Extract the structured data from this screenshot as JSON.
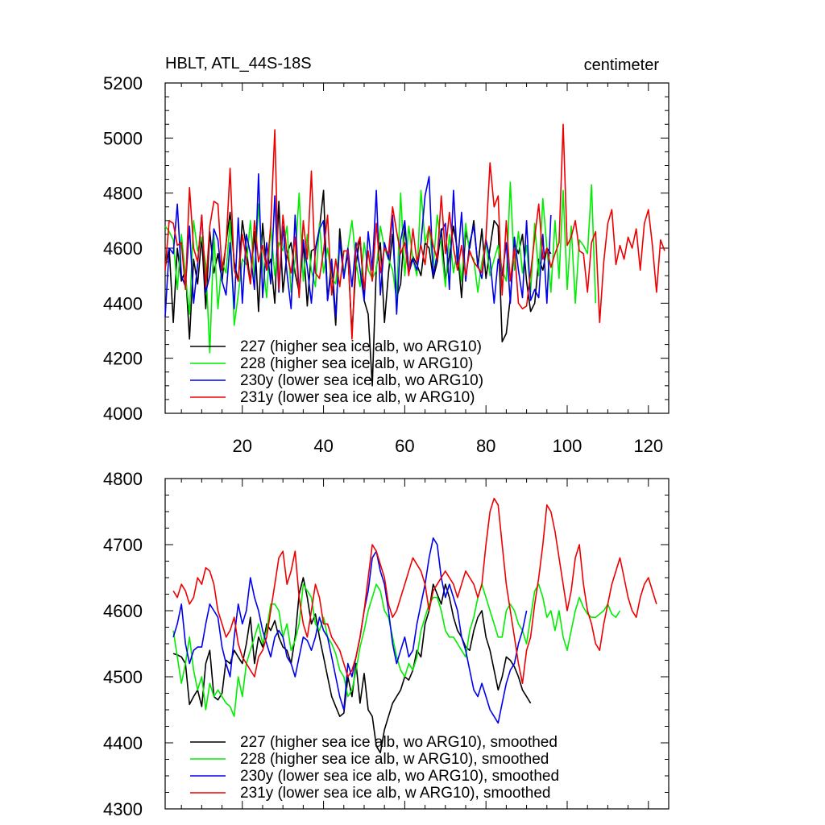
{
  "chart_data": [
    {
      "type": "line",
      "title": "HBLT, ATL_44S-18S",
      "units": "centimeter",
      "xlim": [
        1,
        125
      ],
      "ylim": [
        4000,
        5200
      ],
      "xticks": [
        20,
        40,
        60,
        80,
        100,
        120
      ],
      "yticks": [
        4000,
        4200,
        4400,
        4600,
        4800,
        5000,
        5200
      ],
      "legend_position": "bottom-left",
      "series": [
        {
          "name": "227 (higher sea ice alb, wo ARG10)",
          "color": "#000000",
          "x_start": 1,
          "values": [
            4530,
            4600,
            4330,
            4600,
            4480,
            4520,
            4270,
            4560,
            4470,
            4640,
            4380,
            4660,
            4510,
            4580,
            4480,
            4620,
            4730,
            4550,
            4480,
            4700,
            4600,
            4470,
            4660,
            4370,
            4690,
            4520,
            4560,
            4400,
            4770,
            4440,
            4580,
            4620,
            4510,
            4440,
            4620,
            4390,
            4590,
            4600,
            4670,
            4810,
            4410,
            4530,
            4320,
            4670,
            4500,
            4580,
            4290,
            4540,
            4640,
            4410,
            4360,
            4100,
            4530,
            4620,
            4330,
            4510,
            4650,
            4420,
            4470,
            4680,
            4520,
            4570,
            4540,
            4500,
            4620,
            4600,
            4490,
            4550,
            4670,
            4480,
            4570,
            4680,
            4590,
            4420,
            4660,
            4600,
            4700,
            4530,
            4670,
            4490,
            4600,
            4700,
            4680,
            4260,
            4290,
            4420,
            4620,
            4580,
            4650,
            4480,
            4370,
            4400,
            4560,
            4520,
            4600,
            4580
          ]
        },
        {
          "name": "228 (higher sea ice alb, w ARG10)",
          "color": "#00ee00",
          "x_start": 1,
          "values": [
            4680,
            4660,
            4630,
            4450,
            4650,
            4500,
            4360,
            4700,
            4590,
            4640,
            4540,
            4220,
            4650,
            4380,
            4550,
            4510,
            4700,
            4320,
            4430,
            4560,
            4540,
            4700,
            4490,
            4760,
            4550,
            4420,
            4680,
            4500,
            4620,
            4590,
            4680,
            4440,
            4560,
            4800,
            4480,
            4650,
            4520,
            4460,
            4690,
            4510,
            4600,
            4490,
            4470,
            4620,
            4500,
            4600,
            4700,
            4550,
            4460,
            4620,
            4520,
            4490,
            4520,
            4680,
            4600,
            4560,
            4520,
            4410,
            4800,
            4500,
            4680,
            4560,
            4500,
            4810,
            4620,
            4680,
            4530,
            4720,
            4610,
            4460,
            4650,
            4510,
            4600,
            4480,
            4690,
            4580,
            4560,
            4440,
            4550,
            4620,
            4500,
            4560,
            4610,
            4520,
            4480,
            4840,
            4520,
            4660,
            4510,
            4610,
            4440,
            4690,
            4500,
            4780,
            4600,
            4440,
            4700,
            4490,
            4810,
            4450,
            4680,
            4400,
            4630,
            4610,
            4580,
            4830,
            4400
          ]
        },
        {
          "name": "230y (lower sea ice alb, wo ARG10)",
          "color": "#0000ee",
          "x_start": 1,
          "values": [
            4350,
            4600,
            4580,
            4760,
            4500,
            4460,
            4680,
            4400,
            4540,
            4720,
            4440,
            4500,
            4670,
            4630,
            4480,
            4430,
            4620,
            4380,
            4710,
            4400,
            4650,
            4580,
            4450,
            4870,
            4420,
            4620,
            4470,
            4790,
            4440,
            4680,
            4510,
            4380,
            4720,
            4430,
            4630,
            4530,
            4400,
            4590,
            4670,
            4700,
            4410,
            4560,
            4350,
            4630,
            4490,
            4600,
            4460,
            4620,
            4520,
            4410,
            4660,
            4520,
            4810,
            4430,
            4620,
            4560,
            4720,
            4360,
            4630,
            4700,
            4510,
            4560,
            4520,
            4620,
            4790,
            4860,
            4500,
            4580,
            4660,
            4690,
            4450,
            4810,
            4540,
            4730,
            4480,
            4620,
            4680,
            4540,
            4490,
            4630,
            4560,
            4400,
            4560,
            4500,
            4620,
            4400,
            4640,
            4520,
            4420,
            4700,
            4410,
            4450,
            4420,
            4650,
            4400,
            4720
          ]
        },
        {
          "name": "231y (lower sea ice alb, w ARG10)",
          "color": "#ee0000",
          "x_start": 1,
          "values": [
            4520,
            4700,
            4690,
            4610,
            4620,
            4450,
            4820,
            4600,
            4550,
            4720,
            4460,
            4680,
            4770,
            4760,
            4520,
            4610,
            4890,
            4520,
            4480,
            4650,
            4560,
            4470,
            4700,
            4550,
            4610,
            4520,
            4680,
            5030,
            4450,
            4720,
            4580,
            4510,
            4640,
            4420,
            4700,
            4560,
            4880,
            4510,
            4490,
            4590,
            4720,
            4430,
            4560,
            4460,
            4590,
            4590,
            4270,
            4600,
            4640,
            4450,
            4590,
            4480,
            4690,
            4510,
            4600,
            4580,
            4750,
            4660,
            4580,
            4620,
            4500,
            4670,
            4550,
            4610,
            4540,
            4680,
            4610,
            4560,
            4790,
            4580,
            4730,
            4600,
            4520,
            4610,
            4500,
            4590,
            4550,
            4530,
            4510,
            4640,
            4910,
            4750,
            4790,
            4430,
            4700,
            4480,
            4600,
            4400,
            4380,
            4390,
            4510,
            4640,
            4760,
            4560,
            4600,
            4530,
            4580,
            4620,
            5050,
            4610,
            4640,
            4700,
            4590,
            4580,
            4440,
            4620,
            4660,
            4330,
            4550,
            4690,
            4740,
            4540,
            4610,
            4560,
            4640,
            4600,
            4670,
            4520,
            4690,
            4740,
            4610,
            4440,
            4630,
            4590
          ]
        }
      ]
    },
    {
      "type": "line",
      "title": "",
      "xlim": [
        1,
        125
      ],
      "ylim": [
        4300,
        4800
      ],
      "yticks": [
        4300,
        4400,
        4500,
        4600,
        4700,
        4800
      ],
      "legend_position": "bottom-left",
      "series": [
        {
          "name": "227 (higher sea ice alb, wo ARG10), smoothed",
          "color": "#000000",
          "x_start": 3,
          "values": [
            4535,
            4533,
            4530,
            4520,
            4458,
            4470,
            4480,
            4455,
            4520,
            4540,
            4470,
            4465,
            4475,
            4525,
            4520,
            4540,
            4530,
            4520,
            4550,
            4590,
            4520,
            4560,
            4545,
            4580,
            4570,
            4585,
            4560,
            4545,
            4540,
            4520,
            4560,
            4625,
            4650,
            4620,
            4580,
            4595,
            4560,
            4530,
            4500,
            4470,
            4455,
            4440,
            4445,
            4500,
            4470,
            4520,
            4460,
            4505,
            4450,
            4440,
            4395,
            4385,
            4420,
            4440,
            4460,
            4470,
            4480,
            4500,
            4495,
            4510,
            4540,
            4530,
            4580,
            4600,
            4640,
            4625,
            4610,
            4640,
            4620,
            4590,
            4570,
            4560,
            4545,
            4540,
            4570,
            4590,
            4600,
            4560,
            4540,
            4510,
            4480,
            4500,
            4530,
            4525,
            4515,
            4500,
            4480,
            4470,
            4460
          ]
        },
        {
          "name": "228 (higher sea ice alb, w ARG10), smoothed",
          "color": "#00ee00",
          "x_start": 3,
          "values": [
            4570,
            4530,
            4490,
            4520,
            4560,
            4510,
            4480,
            4500,
            4450,
            4490,
            4470,
            4480,
            4470,
            4460,
            4455,
            4440,
            4500,
            4470,
            4520,
            4540,
            4560,
            4580,
            4550,
            4570,
            4610,
            4610,
            4600,
            4560,
            4580,
            4540,
            4555,
            4580,
            4640,
            4630,
            4620,
            4580,
            4570,
            4590,
            4560,
            4550,
            4535,
            4510,
            4500,
            4470,
            4480,
            4510,
            4545,
            4570,
            4600,
            4620,
            4640,
            4630,
            4600,
            4590,
            4560,
            4530,
            4510,
            4500,
            4520,
            4510,
            4530,
            4570,
            4590,
            4610,
            4620,
            4620,
            4600,
            4570,
            4560,
            4560,
            4550,
            4540,
            4530,
            4570,
            4590,
            4620,
            4640,
            4620,
            4600,
            4580,
            4560,
            4560,
            4600,
            4610,
            4600,
            4580,
            4570,
            4550,
            4590,
            4630,
            4640,
            4620,
            4590,
            4600,
            4570,
            4600,
            4560,
            4540,
            4570,
            4600,
            4620,
            4605,
            4595,
            4590,
            4590,
            4595,
            4600,
            4610,
            4595,
            4590,
            4600
          ]
        },
        {
          "name": "230y (lower sea ice alb, wo ARG10), smoothed",
          "color": "#0000ee",
          "x_start": 3,
          "values": [
            4560,
            4580,
            4610,
            4550,
            4520,
            4540,
            4545,
            4545,
            4580,
            4610,
            4600,
            4590,
            4545,
            4520,
            4500,
            4560,
            4610,
            4580,
            4600,
            4650,
            4620,
            4600,
            4570,
            4550,
            4530,
            4560,
            4570,
            4560,
            4530,
            4520,
            4500,
            4530,
            4560,
            4555,
            4540,
            4560,
            4590,
            4570,
            4560,
            4530,
            4500,
            4470,
            4450,
            4520,
            4500,
            4530,
            4560,
            4600,
            4630,
            4680,
            4690,
            4660,
            4640,
            4600,
            4550,
            4520,
            4540,
            4560,
            4530,
            4540,
            4580,
            4610,
            4640,
            4680,
            4710,
            4700,
            4650,
            4620,
            4640,
            4620,
            4600,
            4560,
            4540,
            4510,
            4480,
            4470,
            4490,
            4470,
            4450,
            4440,
            4430,
            4460,
            4490,
            4510,
            4520,
            4550,
            4570,
            4600
          ]
        },
        {
          "name": "231y (lower sea ice alb, w ARG10), smoothed",
          "color": "#ee0000",
          "x_start": 3,
          "values": [
            4630,
            4620,
            4640,
            4630,
            4610,
            4620,
            4650,
            4640,
            4665,
            4660,
            4640,
            4600,
            4580,
            4560,
            4570,
            4590,
            4550,
            4530,
            4520,
            4510,
            4500,
            4530,
            4540,
            4560,
            4600,
            4640,
            4680,
            4690,
            4640,
            4660,
            4690,
            4620,
            4580,
            4560,
            4600,
            4640,
            4620,
            4580,
            4580,
            4560,
            4550,
            4540,
            4520,
            4500,
            4510,
            4530,
            4560,
            4600,
            4650,
            4700,
            4690,
            4670,
            4650,
            4610,
            4590,
            4600,
            4620,
            4640,
            4660,
            4680,
            4670,
            4660,
            4640,
            4600,
            4630,
            4640,
            4650,
            4660,
            4650,
            4640,
            4620,
            4640,
            4660,
            4650,
            4640,
            4620,
            4640,
            4700,
            4750,
            4770,
            4760,
            4700,
            4640,
            4600,
            4560,
            4520,
            4490,
            4540,
            4560,
            4610,
            4650,
            4700,
            4760,
            4750,
            4720,
            4680,
            4640,
            4600,
            4630,
            4680,
            4700,
            4640,
            4600,
            4580,
            4550,
            4540,
            4580,
            4610,
            4640,
            4660,
            4680,
            4650,
            4620,
            4600,
            4590,
            4620,
            4640,
            4650,
            4630,
            4610
          ]
        }
      ]
    }
  ]
}
